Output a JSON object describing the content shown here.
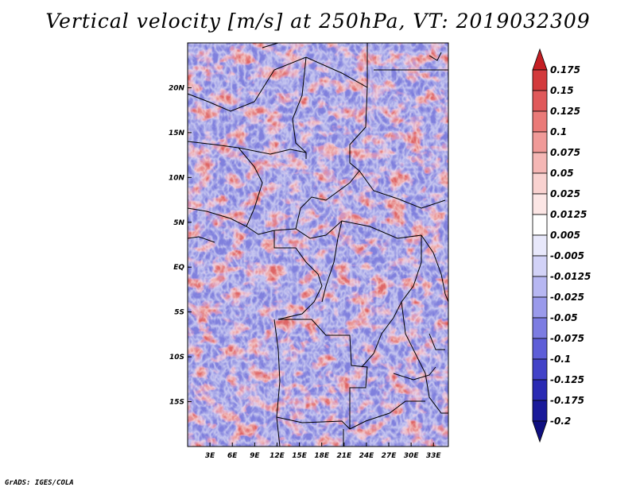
{
  "chart_data": {
    "type": "heatmap",
    "title": "Vertical velocity [m/s] at 250hPa, VT: 2019032309",
    "variable": "Vertical velocity",
    "units": "m/s",
    "level": "250hPa",
    "valid_time": "2019032309",
    "xlabel": "",
    "ylabel": "",
    "x_range_deg_east": [
      0,
      35
    ],
    "y_range_deg_north": [
      -20,
      25
    ],
    "x_ticks": [
      {
        "value": 3,
        "label": "3E"
      },
      {
        "value": 6,
        "label": "6E"
      },
      {
        "value": 9,
        "label": "9E"
      },
      {
        "value": 12,
        "label": "12E"
      },
      {
        "value": 15,
        "label": "15E"
      },
      {
        "value": 18,
        "label": "18E"
      },
      {
        "value": 21,
        "label": "21E"
      },
      {
        "value": 24,
        "label": "24E"
      },
      {
        "value": 27,
        "label": "27E"
      },
      {
        "value": 30,
        "label": "30E"
      },
      {
        "value": 33,
        "label": "33E"
      }
    ],
    "y_ticks": [
      {
        "value": 20,
        "label": "20N"
      },
      {
        "value": 15,
        "label": "15N"
      },
      {
        "value": 10,
        "label": "10N"
      },
      {
        "value": 5,
        "label": "5N"
      },
      {
        "value": 0,
        "label": "EQ"
      },
      {
        "value": -5,
        "label": "5S"
      },
      {
        "value": -10,
        "label": "10S"
      },
      {
        "value": -15,
        "label": "15S"
      }
    ],
    "colorbar": {
      "labels": [
        "0.175",
        "0.15",
        "0.125",
        "0.1",
        "0.075",
        "0.05",
        "0.025",
        "0.0125",
        "0.005",
        "-0.005",
        "-0.0125",
        "-0.025",
        "-0.05",
        "-0.075",
        "-0.1",
        "-0.125",
        "-0.175",
        "-0.2"
      ],
      "colors": [
        "#c41f24",
        "#d33a3c",
        "#e0595a",
        "#ea7a78",
        "#f09a98",
        "#f5b7b5",
        "#f9d2d0",
        "#fce6e5",
        "#ffffff",
        "#e8e8fb",
        "#d2d2f7",
        "#b7b7f2",
        "#9a9aeb",
        "#7c7ce2",
        "#5e5ed8",
        "#4242c8",
        "#2a2ab3",
        "#1a1a9a",
        "#0f0f80"
      ]
    }
  },
  "footer": {
    "credit": "GrADS: IGES/COLA"
  }
}
